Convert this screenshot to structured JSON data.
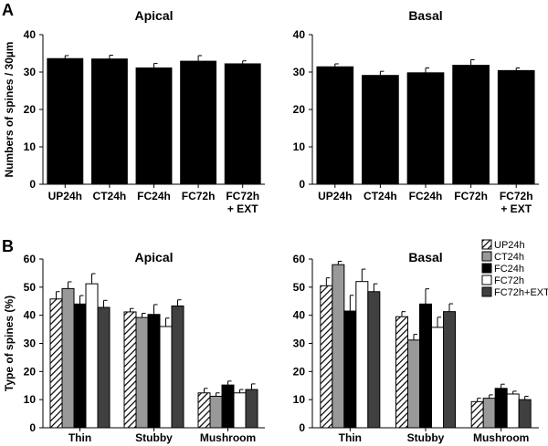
{
  "panels": [
    {
      "letter": "A"
    },
    {
      "letter": "B"
    }
  ],
  "chart_data": [
    {
      "type": "bar",
      "panel": "A",
      "title": "Apical",
      "ylabel": "Numbers of spines / 30µm",
      "categories": [
        "UP24h",
        "CT24h",
        "FC24h",
        "FC72h",
        "FC72h\n+ EXT"
      ],
      "values": [
        33.6,
        33.5,
        31.1,
        32.9,
        32.2
      ],
      "errors": [
        0.8,
        1.0,
        1.2,
        1.5,
        0.8
      ],
      "ylim": [
        0,
        40
      ],
      "yticks": [
        0,
        10,
        20,
        30,
        40
      ],
      "bar_color": "#000000"
    },
    {
      "type": "bar",
      "panel": "A",
      "title": "Basal",
      "ylabel": "",
      "categories": [
        "UP24h",
        "CT24h",
        "FC24h",
        "FC72h",
        "FC72h\n+ EXT"
      ],
      "values": [
        31.4,
        29.1,
        29.8,
        31.8,
        30.4
      ],
      "errors": [
        0.8,
        1.1,
        1.3,
        1.5,
        0.7
      ],
      "ylim": [
        0,
        40
      ],
      "yticks": [
        0,
        10,
        20,
        30,
        40
      ],
      "bar_color": "#000000"
    },
    {
      "type": "bar",
      "panel": "B",
      "title": "Apical",
      "ylabel": "Type of spines (%)",
      "categories": [
        "Thin",
        "Stubby",
        "Mushroom"
      ],
      "series": [
        {
          "name": "UP24h",
          "style": "hatch",
          "values": [
            45.8,
            41.2,
            12.4
          ],
          "errors": [
            2.6,
            1.2,
            1.6
          ]
        },
        {
          "name": "CT24h",
          "style": "#999999",
          "values": [
            49.5,
            39.2,
            11.2
          ],
          "errors": [
            2.4,
            1.5,
            1.2
          ]
        },
        {
          "name": "FC24h",
          "style": "#000000",
          "values": [
            44.0,
            40.3,
            15.2
          ],
          "errors": [
            3.0,
            3.5,
            1.4
          ]
        },
        {
          "name": "FC72h",
          "style": "#ffffff",
          "values": [
            51.2,
            36.0,
            12.4
          ],
          "errors": [
            3.6,
            3.0,
            1.2
          ]
        },
        {
          "name": "FC72h+EXT",
          "style": "#404040",
          "values": [
            42.8,
            43.3,
            13.6
          ],
          "errors": [
            2.5,
            2.2,
            2.0
          ]
        }
      ],
      "ylim": [
        0,
        60
      ],
      "yticks": [
        0,
        10,
        20,
        30,
        40,
        50,
        60
      ]
    },
    {
      "type": "bar",
      "panel": "B",
      "title": "Basal",
      "ylabel": "",
      "categories": [
        "Thin",
        "Stubby",
        "Mushroom"
      ],
      "series": [
        {
          "name": "UP24h",
          "style": "hatch",
          "values": [
            50.5,
            39.5,
            9.3
          ],
          "errors": [
            2.8,
            1.8,
            1.2
          ]
        },
        {
          "name": "CT24h",
          "style": "#999999",
          "values": [
            58.0,
            31.2,
            10.5
          ],
          "errors": [
            1.2,
            2.0,
            1.2
          ]
        },
        {
          "name": "FC24h",
          "style": "#000000",
          "values": [
            41.5,
            44.0,
            14.0
          ],
          "errors": [
            5.6,
            5.4,
            1.5
          ]
        },
        {
          "name": "FC72h",
          "style": "#ffffff",
          "values": [
            52.0,
            35.7,
            12.0
          ],
          "errors": [
            4.4,
            3.6,
            1.0
          ]
        },
        {
          "name": "FC72h+EXT",
          "style": "#404040",
          "values": [
            48.4,
            41.3,
            10.0
          ],
          "errors": [
            2.8,
            2.8,
            1.2
          ]
        }
      ],
      "ylim": [
        0,
        60
      ],
      "yticks": [
        0,
        10,
        20,
        30,
        40,
        50,
        60
      ],
      "legend": "top-right"
    }
  ]
}
